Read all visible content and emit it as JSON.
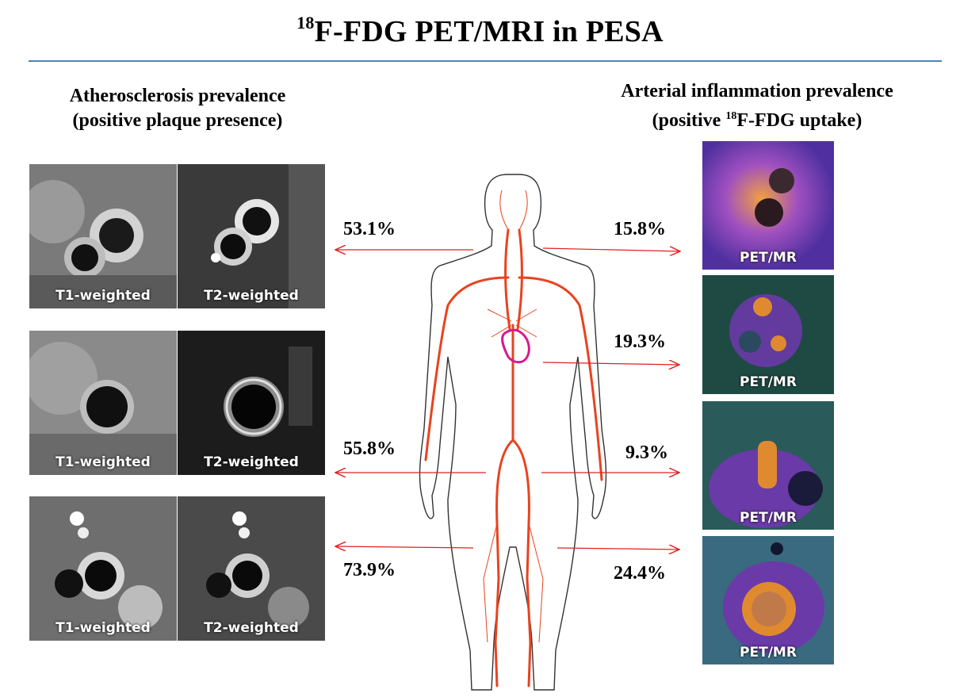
{
  "title": {
    "sup": "18",
    "text": "F-FDG PET/MRI in PESA"
  },
  "left_heading": {
    "line1": "Atherosclerosis prevalence",
    "line2": "(positive plaque presence)"
  },
  "right_heading": {
    "line1": "Arterial inflammation prevalence",
    "line2_pre": "(positive ",
    "line2_sup": "18",
    "line2_post": "F-FDG uptake)"
  },
  "mri_rows": [
    {
      "t1": "T1-weighted",
      "t2": "T2-weighted"
    },
    {
      "t1": "T1-weighted",
      "t2": "T2-weighted"
    },
    {
      "t1": "T1-weighted",
      "t2": "T2-weighted"
    }
  ],
  "pet_panels": [
    {
      "label": "PET/MR"
    },
    {
      "label": "PET/MR"
    },
    {
      "label": "PET/MR"
    },
    {
      "label": "PET/MR"
    }
  ],
  "percentages": {
    "plaque": [
      "53.1%",
      "55.8%",
      "73.9%"
    ],
    "inflammation": [
      "15.8%",
      "19.3%",
      "9.3%",
      "24.4%"
    ]
  },
  "colors": {
    "rule": "#4f81bd",
    "artery": "#e8431f",
    "heart": "#d6198f",
    "arrow": "#e02020"
  }
}
